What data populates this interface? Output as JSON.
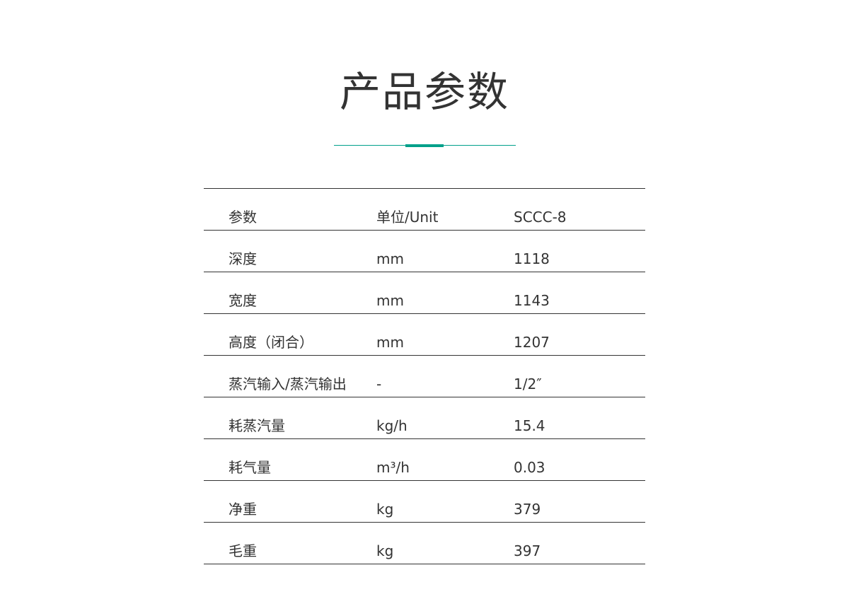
{
  "title": "产品参数",
  "accent_color": "#00a08a",
  "table": {
    "header": {
      "param": "参数",
      "unit": "单位/Unit",
      "model": "SCCC-8"
    },
    "rows": [
      {
        "param": "深度",
        "unit": "mm",
        "value": "1118"
      },
      {
        "param": "宽度",
        "unit": "mm",
        "value": "1143"
      },
      {
        "param": "高度（闭合）",
        "unit": "mm",
        "value": "1207"
      },
      {
        "param": "蒸汽输入/蒸汽输出",
        "unit": "-",
        "value": "1/2″"
      },
      {
        "param": "耗蒸汽量",
        "unit": "kg/h",
        "value": "15.4"
      },
      {
        "param": "耗气量",
        "unit": "m³/h",
        "value": "0.03"
      },
      {
        "param": "净重",
        "unit": "kg",
        "value": "379"
      },
      {
        "param": "毛重",
        "unit": "kg",
        "value": "397"
      }
    ]
  }
}
